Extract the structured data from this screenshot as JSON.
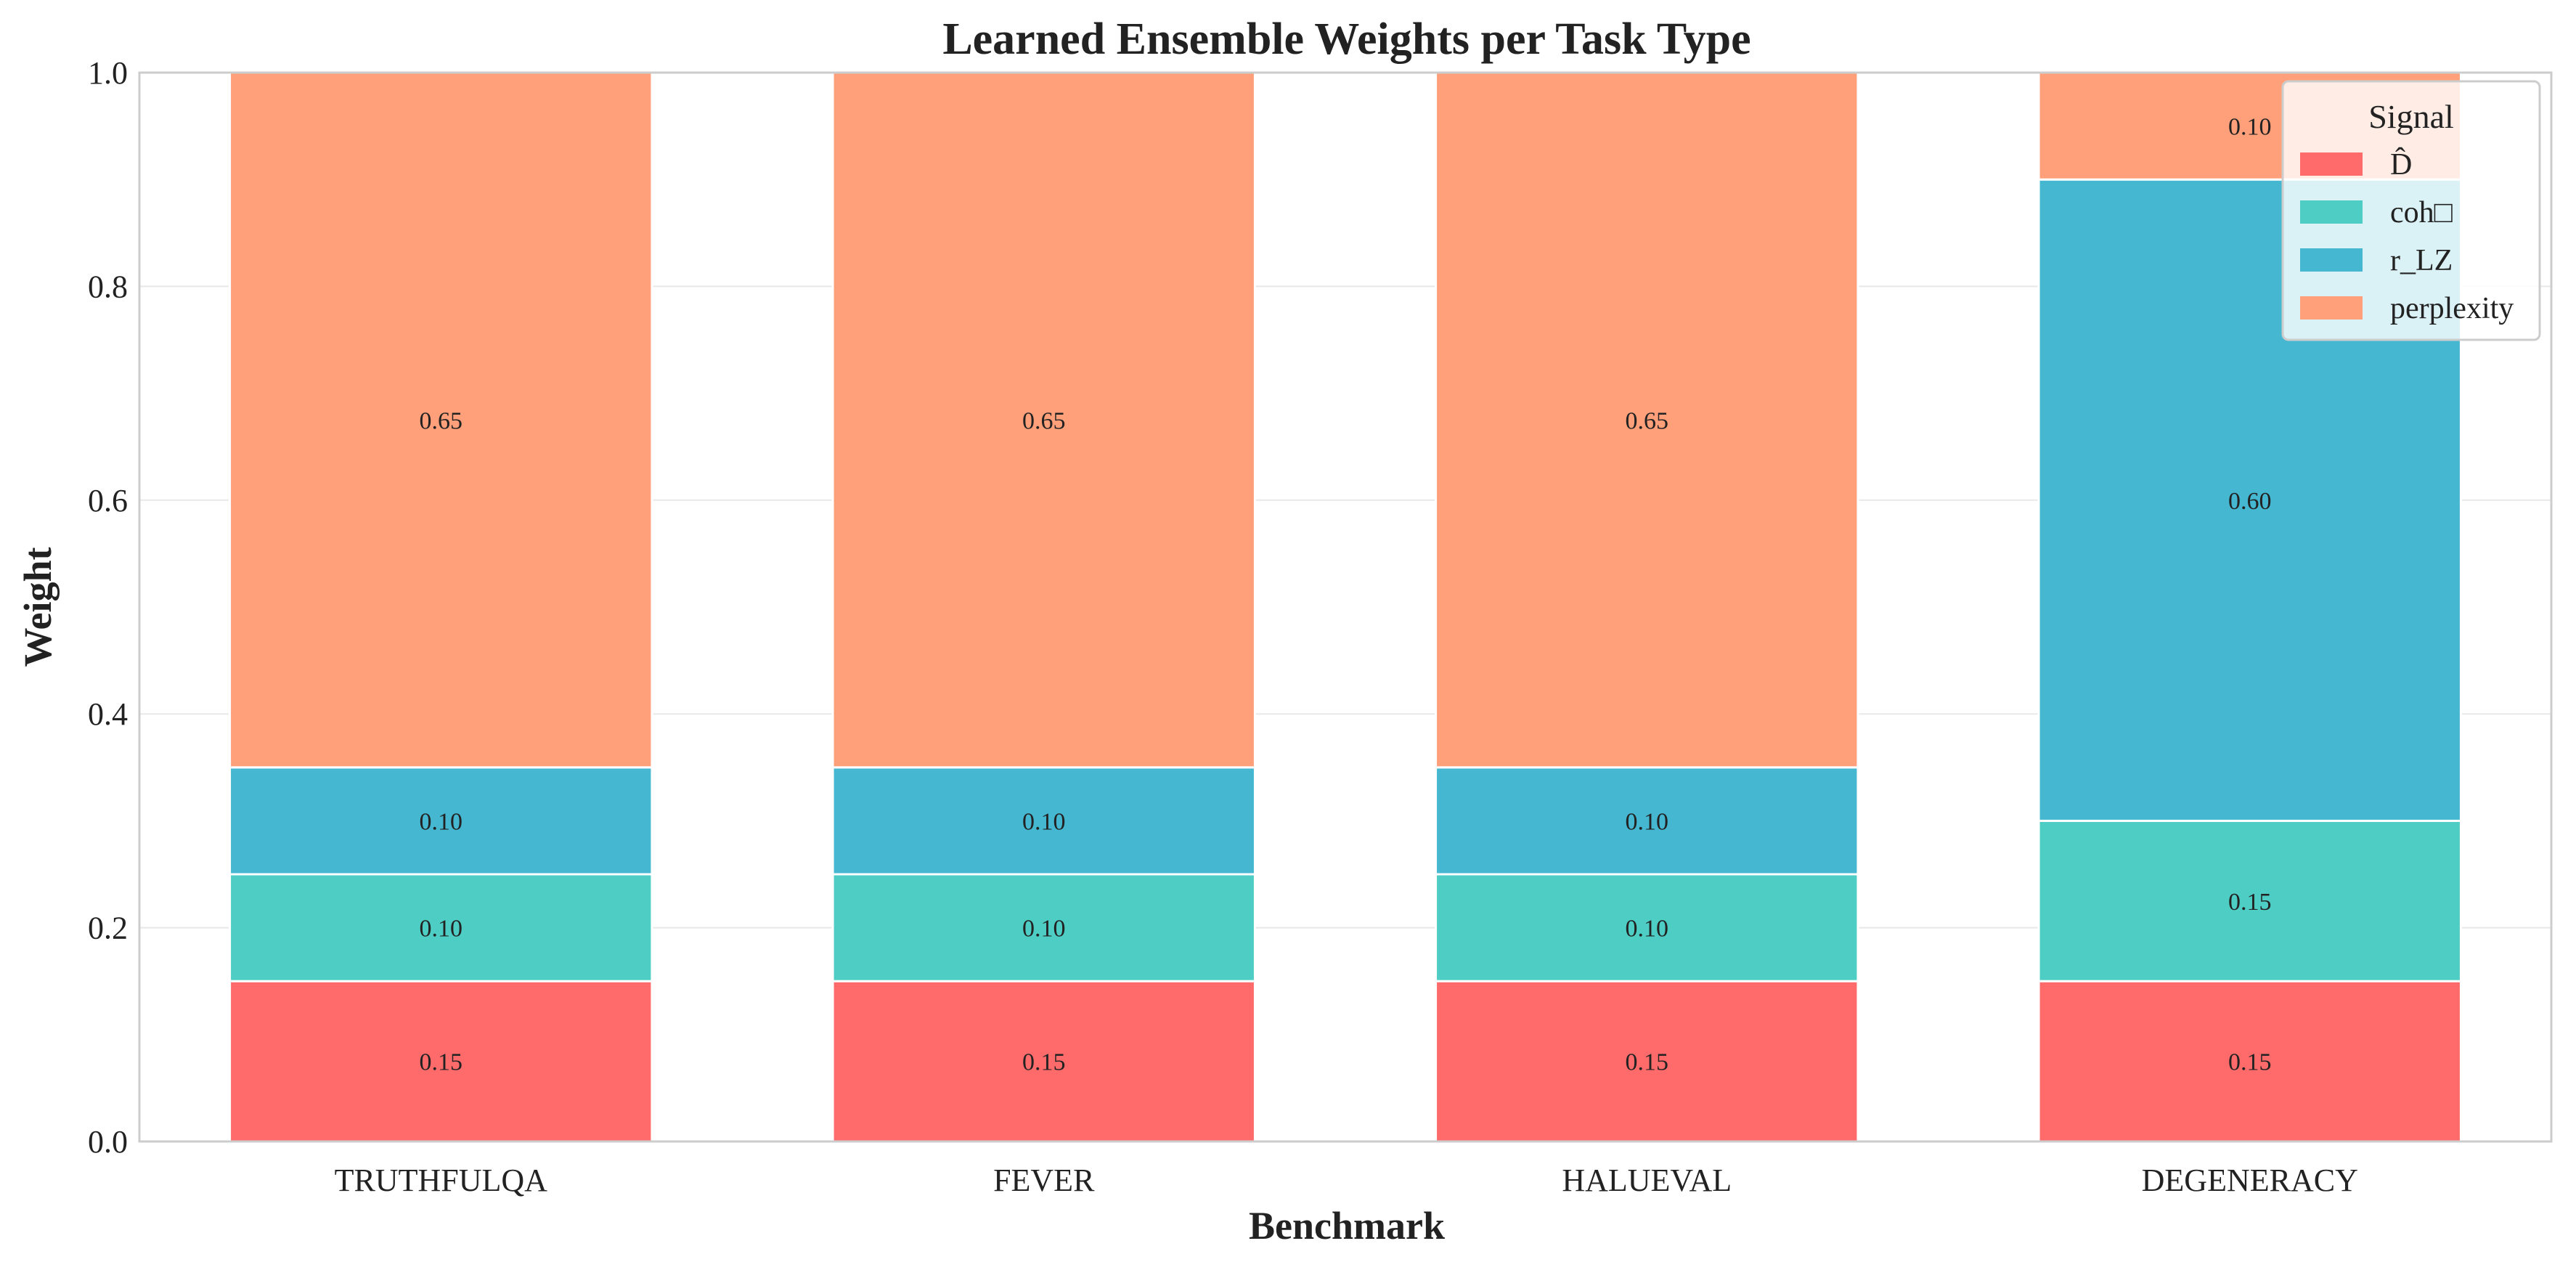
{
  "chart_data": {
    "type": "bar",
    "stacked": true,
    "title": "Learned Ensemble Weights per Task Type",
    "xlabel": "Benchmark",
    "ylabel": "Weight",
    "ylim": [
      0,
      1.0
    ],
    "yticks": [
      "0.0",
      "0.2",
      "0.4",
      "0.6",
      "0.8",
      "1.0"
    ],
    "grid": true,
    "legend": {
      "title": "Signal",
      "placement": "top-right"
    },
    "categories": [
      "TRUTHFULQA",
      "FEVER",
      "HALUEVAL",
      "DEGENERACY"
    ],
    "series": [
      {
        "name": "D̂",
        "color": "#FF6B6B",
        "values": [
          0.15,
          0.15,
          0.15,
          0.15
        ],
        "labels": [
          "0.15",
          "0.15",
          "0.15",
          "0.15"
        ]
      },
      {
        "name": "coh□",
        "color": "#4ECDC4",
        "values": [
          0.1,
          0.1,
          0.1,
          0.15
        ],
        "labels": [
          "0.10",
          "0.10",
          "0.10",
          "0.15"
        ]
      },
      {
        "name": "r_LZ",
        "color": "#45B7D1",
        "values": [
          0.1,
          0.1,
          0.1,
          0.6
        ],
        "labels": [
          "0.10",
          "0.10",
          "0.10",
          "0.60"
        ]
      },
      {
        "name": "perplexity",
        "color": "#FFA07A",
        "values": [
          0.65,
          0.65,
          0.65,
          0.1
        ],
        "labels": [
          "0.65",
          "0.65",
          "0.65",
          "0.10"
        ]
      }
    ]
  }
}
